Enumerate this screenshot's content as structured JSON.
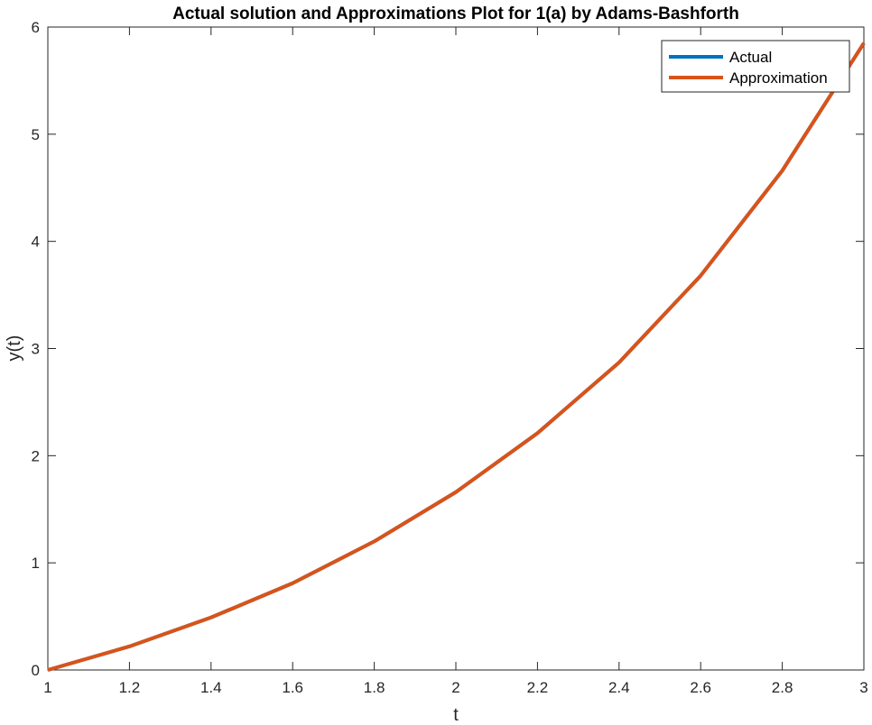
{
  "chart_data": {
    "type": "line",
    "title": "Actual solution and Approximations Plot for 1(a) by Adams-Bashforth",
    "xlabel": "t",
    "ylabel": "y(t)",
    "xlim": [
      1,
      3
    ],
    "ylim": [
      0,
      6
    ],
    "xticks": [
      "1",
      "1.2",
      "1.4",
      "1.6",
      "1.8",
      "2",
      "2.2",
      "2.4",
      "2.6",
      "2.8",
      "3"
    ],
    "yticks": [
      "0",
      "1",
      "2",
      "3",
      "4",
      "5",
      "6"
    ],
    "grid": false,
    "legend_position": "top-right",
    "x": [
      1,
      1.2,
      1.4,
      1.6,
      1.8,
      2,
      2.2,
      2.4,
      2.6,
      2.8,
      3
    ],
    "series": [
      {
        "name": "Actual",
        "color": "#0072BD",
        "values": [
          0,
          0.22,
          0.49,
          0.81,
          1.2,
          1.66,
          2.21,
          2.87,
          3.68,
          4.66,
          5.85
        ]
      },
      {
        "name": "Approximation",
        "color": "#D95319",
        "values": [
          0,
          0.22,
          0.49,
          0.81,
          1.2,
          1.66,
          2.21,
          2.87,
          3.68,
          4.66,
          5.85
        ]
      }
    ]
  }
}
